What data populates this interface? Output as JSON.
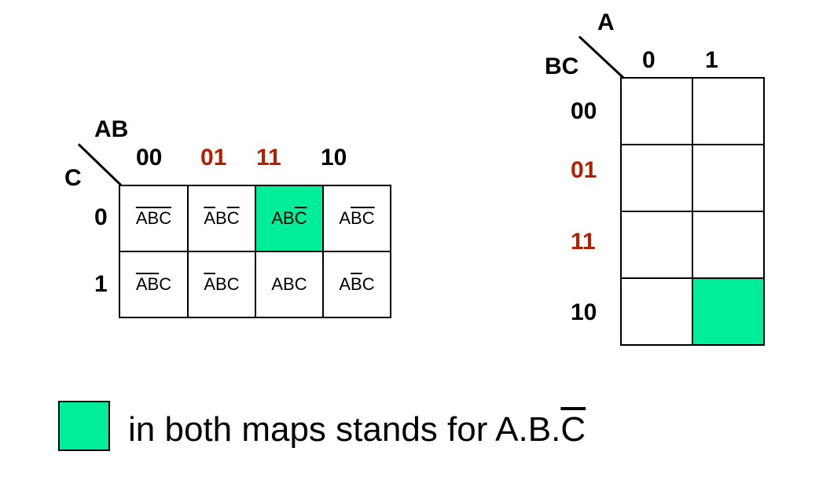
{
  "map1": {
    "row_var": "C",
    "col_var": "AB",
    "col_headers": [
      {
        "label": "00",
        "highlight": false
      },
      {
        "label": "01",
        "highlight": true
      },
      {
        "label": "11",
        "highlight": true
      },
      {
        "label": "10",
        "highlight": false
      }
    ],
    "row_headers": [
      "0",
      "1"
    ],
    "cells": [
      [
        {
          "parts": [
            {
              "t": "A",
              "bar": true
            },
            {
              "t": "B",
              "bar": true
            },
            {
              "t": "C",
              "bar": true
            }
          ],
          "fill": false
        },
        {
          "parts": [
            {
              "t": "A",
              "bar": true
            },
            {
              "t": "B",
              "bar": false
            },
            {
              "t": "C",
              "bar": true
            }
          ],
          "fill": false
        },
        {
          "parts": [
            {
              "t": "A",
              "bar": false
            },
            {
              "t": "B",
              "bar": false
            },
            {
              "t": "C",
              "bar": true
            }
          ],
          "fill": true
        },
        {
          "parts": [
            {
              "t": "A",
              "bar": false
            },
            {
              "t": "B",
              "bar": true
            },
            {
              "t": "C",
              "bar": true
            }
          ],
          "fill": false
        }
      ],
      [
        {
          "parts": [
            {
              "t": "A",
              "bar": true
            },
            {
              "t": "B",
              "bar": true
            },
            {
              "t": "C",
              "bar": false
            }
          ],
          "fill": false
        },
        {
          "parts": [
            {
              "t": "A",
              "bar": true
            },
            {
              "t": "B",
              "bar": false
            },
            {
              "t": "C",
              "bar": false
            }
          ],
          "fill": false
        },
        {
          "parts": [
            {
              "t": "A",
              "bar": false
            },
            {
              "t": "B",
              "bar": false
            },
            {
              "t": "C",
              "bar": false
            }
          ],
          "fill": false
        },
        {
          "parts": [
            {
              "t": "A",
              "bar": false
            },
            {
              "t": "B",
              "bar": true
            },
            {
              "t": "C",
              "bar": false
            }
          ],
          "fill": false
        }
      ]
    ]
  },
  "map2": {
    "row_var": "BC",
    "col_var": "A",
    "col_headers": [
      "0",
      "1"
    ],
    "row_headers": [
      {
        "label": "00",
        "highlight": false
      },
      {
        "label": "01",
        "highlight": true
      },
      {
        "label": "11",
        "highlight": true
      },
      {
        "label": "10",
        "highlight": false
      }
    ],
    "filled_cell": {
      "row": 3,
      "col": 1
    }
  },
  "legend": {
    "text": "in both maps stands for A.B.",
    "bar_var": "C"
  },
  "colors": {
    "fill": "#00ee99",
    "highlight_text": "#b22000"
  }
}
